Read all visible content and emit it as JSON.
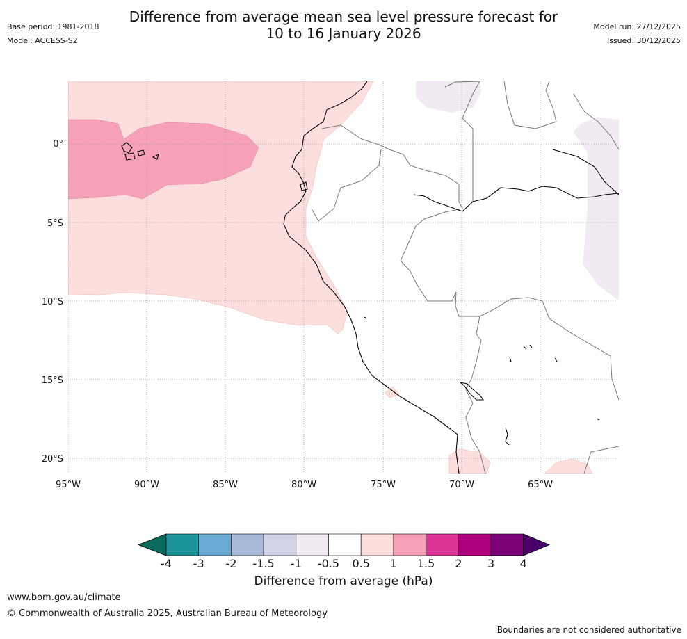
{
  "header": {
    "title_line1": "Difference from average mean sea level pressure forecast for",
    "title_line2": "10 to 16 January 2026",
    "base_period": "Base period: 1981-2018",
    "model": "Model: ACCESS-S2",
    "model_run": "Model run: 27/12/2025",
    "issued": "Issued: 30/12/2025"
  },
  "map": {
    "lat_labels": [
      "0°",
      "5°S",
      "10°S",
      "15°S",
      "20°S"
    ],
    "lon_labels": [
      "95°W",
      "90°W",
      "85°W",
      "80°W",
      "75°W",
      "70°W",
      "65°W"
    ],
    "colors": {
      "light_pink": "#fcdedd",
      "pink": "#f7a1b9",
      "light_purple": "#f2eaf2",
      "coast": "#000000",
      "border": "#777777"
    }
  },
  "colorbar": {
    "ticks": [
      "-4",
      "-3",
      "-2",
      "-1.5",
      "-1",
      "-0.5",
      "0.5",
      "1",
      "1.5",
      "2",
      "3",
      "4"
    ],
    "colors": [
      "#0b6b5e",
      "#1c9398",
      "#69a9d2",
      "#a8b9d9",
      "#d0d2e6",
      "#f2eaf2",
      "#ffffff",
      "#fcdedd",
      "#f7a1b9",
      "#dd3497",
      "#ae017e",
      "#7a0177",
      "#49006a"
    ],
    "label": "Difference from average (hPa)"
  },
  "footer": {
    "url": "www.bom.gov.au/climate",
    "copyright": "© Commonwealth of Australia 2025, Australian Bureau of Meteorology",
    "disclaimer": "Boundaries are not considered authoritative"
  }
}
